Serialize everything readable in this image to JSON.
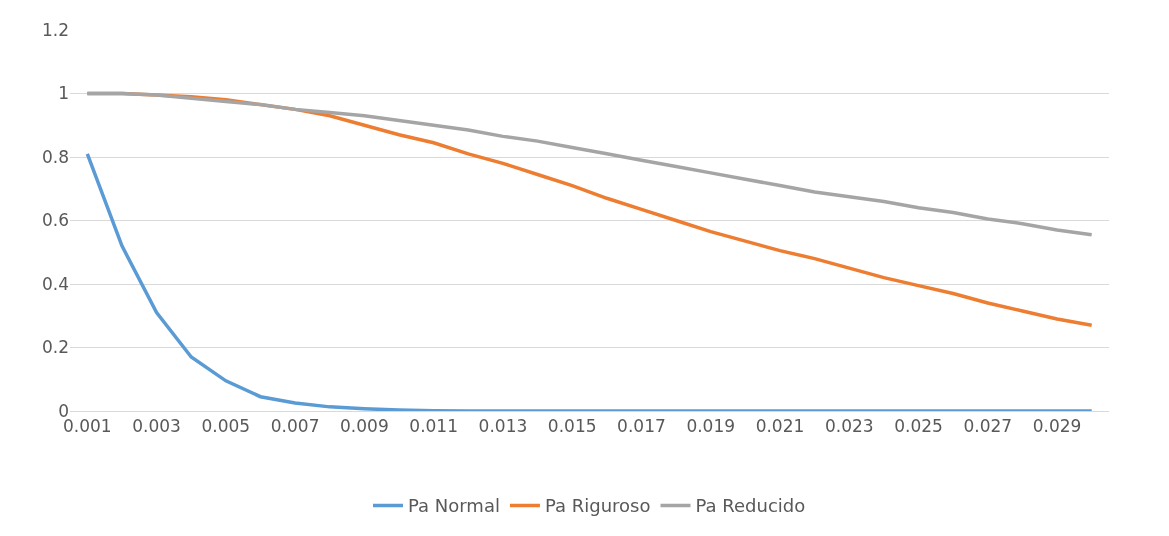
{
  "chart_data": {
    "type": "line",
    "categories": [
      "0.001",
      null,
      "0.003",
      null,
      "0.005",
      null,
      "0.007",
      null,
      "0.009",
      null,
      "0.011",
      null,
      "0.013",
      null,
      "0.015",
      null,
      "0.017",
      null,
      "0.019",
      null,
      "0.021",
      null,
      "0.023",
      null,
      "0.025",
      null,
      "0.027",
      null,
      "0.029",
      null
    ],
    "series": [
      {
        "name": "Pa Normal",
        "color": "#5b9bd5",
        "values": [
          0.81,
          0.52,
          0.31,
          0.17,
          0.095,
          0.045,
          0.025,
          0.013,
          0.007,
          0.003,
          0.001,
          0,
          0,
          0,
          0,
          0,
          0,
          0,
          0,
          0,
          0,
          0,
          0,
          0,
          0,
          0,
          0,
          0,
          0,
          0
        ]
      },
      {
        "name": "Pa Riguroso",
        "color": "#ed7d31",
        "values": [
          1.0,
          1.0,
          0.995,
          0.99,
          0.98,
          0.965,
          0.95,
          0.93,
          0.9,
          0.87,
          0.845,
          0.81,
          0.78,
          0.745,
          0.71,
          0.67,
          0.635,
          0.6,
          0.565,
          0.535,
          0.505,
          0.48,
          0.45,
          0.42,
          0.395,
          0.37,
          0.34,
          0.315,
          0.29,
          0.27
        ]
      },
      {
        "name": "Pa Reducido",
        "color": "#a5a5a5",
        "values": [
          1.0,
          1.0,
          0.995,
          0.985,
          0.975,
          0.965,
          0.95,
          0.94,
          0.93,
          0.915,
          0.9,
          0.885,
          0.865,
          0.85,
          0.83,
          0.81,
          0.79,
          0.77,
          0.75,
          0.73,
          0.71,
          0.69,
          0.675,
          0.66,
          0.64,
          0.625,
          0.605,
          0.59,
          0.57,
          0.555
        ]
      }
    ],
    "ylim": [
      0,
      1.2
    ],
    "yticks": [
      0,
      0.2,
      0.4,
      0.6,
      0.8,
      1,
      1.2
    ],
    "grid": "y",
    "legend": "bottom",
    "marker": "none",
    "line_style": "solid"
  }
}
